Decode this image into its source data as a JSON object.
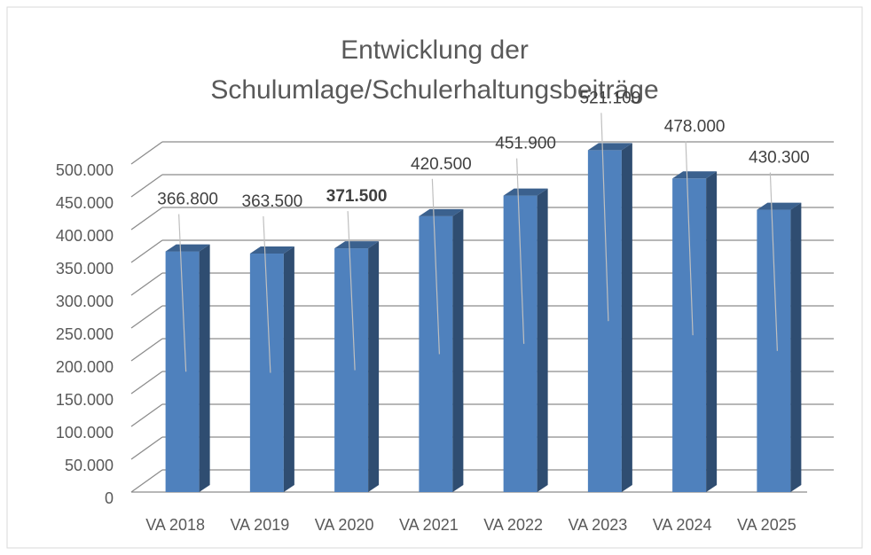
{
  "chart_data": {
    "type": "bar3d",
    "title": [
      "Entwicklung der",
      "Schulumlage/Schulerhaltungsbeiträge"
    ],
    "categories": [
      "VA 2018",
      "VA 2019",
      "VA 2020",
      "VA 2021",
      "VA 2022",
      "VA 2023",
      "VA 2024",
      "VA 2025"
    ],
    "values": [
      366800,
      363500,
      371500,
      420500,
      451900,
      521100,
      478000,
      430300
    ],
    "value_labels": [
      "366.800",
      "363.500",
      "371.500",
      "420.500",
      "451.900",
      "521.100",
      "478.000",
      "430.300"
    ],
    "color": "#4f81bd",
    "ylim": [
      0,
      500000
    ],
    "yticks": [
      0,
      {
        "value": 50000,
        "label": "50.000"
      },
      {
        "value": 100000,
        "label": "100.000"
      },
      {
        "value": 150000,
        "label": "150.000"
      },
      {
        "value": 200000,
        "label": "200.000"
      },
      {
        "value": 250000,
        "label": "250.000"
      },
      {
        "value": 300000,
        "label": "300.000"
      },
      {
        "value": 350000,
        "label": "350.000"
      },
      {
        "value": 400000,
        "label": "400.000"
      },
      {
        "value": 450000,
        "label": "450.000"
      },
      {
        "value": 500000,
        "label": "500.000"
      }
    ],
    "grid": true
  }
}
